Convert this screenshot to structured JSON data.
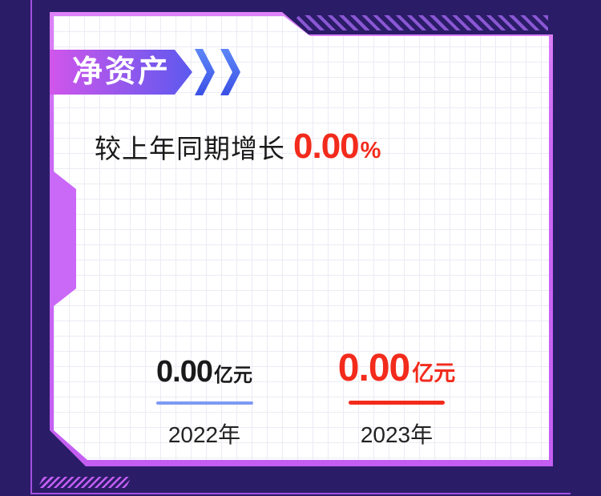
{
  "theme": {
    "background": "#2b1c68",
    "card_border": "#cb68f6",
    "grid_line": "#ebebf5",
    "badge_gradient_start": "#d156eb",
    "badge_gradient_end": "#5d59ee",
    "chevron_blue": "#4a66f0",
    "accent_red": "#f22b1c",
    "accent_blue_line": "#7e9af3",
    "text_dark": "#1a1a1a",
    "frame_line": "#a44fe0",
    "hatch_top": "#8a57d4",
    "hatch_bottom": "#c35ff2"
  },
  "badge": {
    "label": "净资产"
  },
  "growth": {
    "label": "较上年同期增长",
    "value": "0.00",
    "unit": "%"
  },
  "columns": [
    {
      "value": "0.00",
      "unit": "亿元",
      "year": "2022年"
    },
    {
      "value": "0.00",
      "unit": "亿元",
      "year": "2023年"
    }
  ],
  "chart_data": {
    "type": "bar",
    "title": "净资产",
    "categories": [
      "2022年",
      "2023年"
    ],
    "values": [
      0.0,
      0.0
    ],
    "unit": "亿元",
    "series_colors": [
      "#1a1a1a",
      "#f22b1c"
    ],
    "annotations": [
      "较上年同期增长 0.00%"
    ],
    "legend_position": "none",
    "grid": true
  }
}
